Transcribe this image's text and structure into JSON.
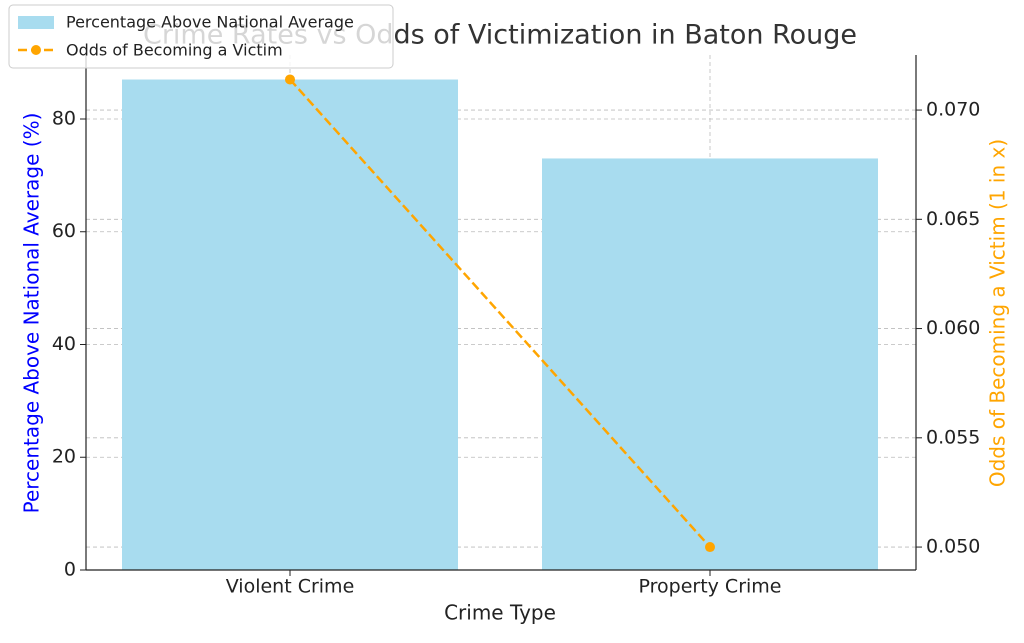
{
  "chart_data": {
    "type": "bar_line",
    "title": "Crime Rates vs Odds of Victimization in Baton Rouge",
    "x_label": "Crime Type",
    "y_label": "Percentage Above National Average (%)",
    "y2_label": "Odds of Becoming a Victim (1 in x)",
    "categories": [
      "Violent Crime",
      "Property Crime"
    ],
    "series": [
      {
        "name": "Percentage Above National Average",
        "type": "bar",
        "color": "#a8dcef",
        "values": [
          87,
          73
        ]
      },
      {
        "name": "Odds of Becoming a Victim",
        "type": "line",
        "color": "#ffa500",
        "axis": "y2",
        "values": [
          0.0714,
          0.05
        ]
      }
    ],
    "ylim": [
      0,
      91.35
    ],
    "yticks": [
      0,
      20,
      40,
      60,
      80
    ],
    "y2lim": [
      0.04895,
      0.07252
    ],
    "y2ticks": [
      {
        "value": 0.05,
        "label": "0.050"
      },
      {
        "value": 0.055,
        "label": "0.055"
      },
      {
        "value": 0.06,
        "label": "0.060"
      },
      {
        "value": 0.065,
        "label": "0.065"
      },
      {
        "value": 0.07,
        "label": "0.070"
      }
    ],
    "y_label_color": "#0000ff",
    "y2_label_color": "#ffa500",
    "grid": true,
    "legend": "upper-left"
  }
}
